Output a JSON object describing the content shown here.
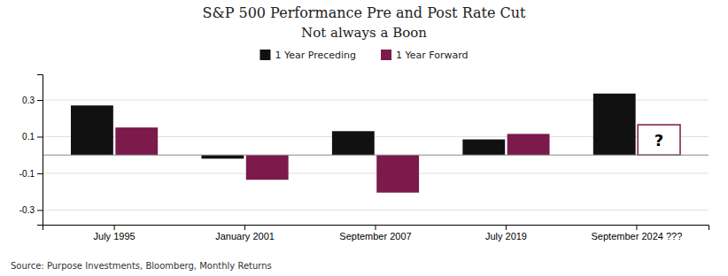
{
  "chart_data": {
    "type": "bar",
    "title": "S&P 500 Performance Pre and Post Rate Cut",
    "subtitle": "Not always a Boon",
    "categories": [
      "July 1995",
      "January 2001",
      "September 2007",
      "July 2019",
      "September 2024 ???"
    ],
    "series": [
      {
        "name": "1 Year Preceding",
        "color": "#111111",
        "values": [
          0.27,
          -0.02,
          0.13,
          0.085,
          0.335
        ]
      },
      {
        "name": "1 Year Forward",
        "color": "#7B1A4B",
        "values": [
          0.15,
          -0.135,
          -0.205,
          0.115,
          null
        ]
      }
    ],
    "annotations": [
      {
        "text": "?",
        "category": "September 2024 ???",
        "series": "1 Year Forward",
        "value": 0.165
      },
      {
        "text": "Source: Purpose Investments, Bloomberg, Monthly Returns"
      }
    ],
    "ylim": [
      -0.38,
      0.44
    ],
    "yticks": [
      -0.3,
      -0.1,
      0.1,
      0.3
    ],
    "grid": true,
    "legend": "top"
  }
}
